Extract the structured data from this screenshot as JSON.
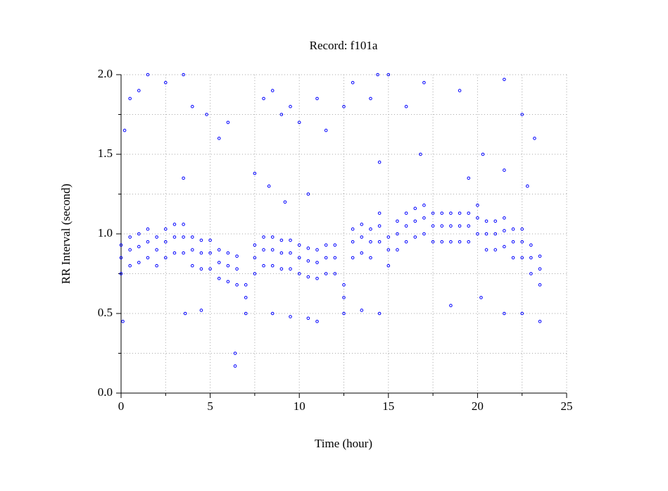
{
  "chart_data": {
    "type": "scatter",
    "title": "Record:  f101a",
    "x_label": "Time (hour)",
    "y_label": "RR Interval (second)",
    "xlim": [
      0,
      25
    ],
    "ylim": [
      0,
      2
    ],
    "xticks": [
      0,
      5,
      10,
      15,
      20,
      25
    ],
    "xminor": [
      2.5,
      7.5,
      12.5,
      17.5,
      22.5
    ],
    "yticks": [
      {
        "value": 0,
        "label": "0.0"
      },
      {
        "value": 0.5,
        "label": "0.5"
      },
      {
        "value": 1,
        "label": "1.0"
      },
      {
        "value": 1.5,
        "label": "1.5"
      },
      {
        "value": 2,
        "label": "2.0"
      }
    ],
    "yminor": [
      0.25,
      0.75,
      1.25,
      1.75
    ],
    "grid": true,
    "series": [
      {
        "color": "#0000ff",
        "x": [
          0,
          0,
          0,
          0.5,
          0.5,
          0.5,
          1,
          1,
          1,
          1.5,
          1.5,
          1.5,
          2,
          2,
          2,
          2.5,
          2.5,
          2.5,
          3,
          3,
          3,
          3.5,
          3.5,
          3.5,
          4,
          4,
          4,
          4.5,
          4.5,
          4.5,
          5,
          5,
          5,
          5.5,
          5.5,
          5.5,
          6,
          6,
          6,
          6.5,
          6.5,
          6.5,
          7,
          7,
          7,
          7.5,
          7.5,
          7.5,
          8,
          8,
          8,
          8.5,
          8.5,
          8.5,
          9,
          9,
          9,
          9.5,
          9.5,
          9.5,
          10,
          10,
          10,
          10.5,
          10.5,
          10.5,
          11,
          11,
          11,
          11.5,
          11.5,
          11.5,
          12,
          12,
          12,
          12.5,
          12.5,
          12.5,
          13,
          13,
          13,
          13.5,
          13.5,
          13.5,
          14,
          14,
          14,
          14.5,
          14.5,
          14.5,
          15,
          15,
          15,
          15.5,
          15.5,
          15.5,
          16,
          16,
          16,
          16.5,
          16.5,
          16.5,
          17,
          17,
          17,
          17.5,
          17.5,
          17.5,
          18,
          18,
          18,
          18.5,
          18.5,
          18.5,
          19,
          19,
          19,
          19.5,
          19.5,
          19.5,
          20,
          20,
          20,
          20.5,
          20.5,
          20.5,
          21,
          21,
          21,
          21.5,
          21.5,
          21.5,
          22,
          22,
          22,
          22.5,
          22.5,
          22.5,
          23,
          23,
          23,
          23.5,
          23.5,
          23.5,
          0.2,
          0.5,
          1,
          1.5,
          2.5,
          3.5,
          4,
          4.8,
          5.5,
          6,
          6.4,
          6.4,
          8,
          8.5,
          9,
          9.5,
          10,
          11,
          11.5,
          12.5,
          13,
          14,
          14.4,
          15,
          16,
          17,
          19,
          20.3,
          21.5,
          22.5,
          23.2,
          3.6,
          4.5,
          8.5,
          9.5,
          10.5,
          11,
          13.5,
          14.5,
          18.5,
          20.2,
          21.5,
          22.5,
          23.5,
          0.1,
          8.3,
          9.2,
          10.5,
          14.5,
          16.8,
          19.5,
          21.5,
          22.8,
          7.5,
          3.5
        ],
        "values": [
          0.75,
          0.85,
          0.93,
          0.8,
          0.9,
          0.98,
          0.82,
          0.92,
          1.0,
          0.85,
          0.95,
          1.03,
          0.8,
          0.9,
          0.98,
          0.85,
          0.95,
          1.03,
          0.88,
          0.98,
          1.06,
          0.88,
          0.98,
          1.06,
          0.8,
          0.9,
          0.98,
          0.78,
          0.88,
          0.96,
          0.78,
          0.88,
          0.96,
          0.72,
          0.82,
          0.9,
          0.7,
          0.8,
          0.88,
          0.68,
          0.78,
          0.86,
          0.5,
          0.6,
          0.68,
          0.75,
          0.85,
          0.93,
          0.8,
          0.9,
          0.98,
          0.8,
          0.9,
          0.98,
          0.78,
          0.88,
          0.96,
          0.78,
          0.88,
          0.96,
          0.75,
          0.85,
          0.93,
          0.73,
          0.83,
          0.91,
          0.72,
          0.82,
          0.9,
          0.75,
          0.85,
          0.93,
          0.75,
          0.85,
          0.93,
          0.5,
          0.6,
          0.68,
          0.85,
          0.95,
          1.03,
          0.88,
          0.98,
          1.06,
          0.85,
          0.95,
          1.03,
          0.95,
          1.05,
          1.13,
          0.8,
          0.9,
          0.98,
          0.9,
          1.0,
          1.08,
          0.95,
          1.05,
          1.13,
          0.98,
          1.08,
          1.16,
          1.0,
          1.1,
          1.18,
          0.95,
          1.05,
          1.13,
          0.95,
          1.05,
          1.13,
          0.95,
          1.05,
          1.13,
          0.95,
          1.05,
          1.13,
          0.95,
          1.05,
          1.13,
          1.0,
          1.1,
          1.18,
          0.9,
          1.0,
          1.08,
          0.9,
          1.0,
          1.08,
          0.92,
          1.02,
          1.1,
          0.85,
          0.95,
          1.03,
          0.85,
          0.95,
          1.03,
          0.75,
          0.85,
          0.93,
          0.68,
          0.78,
          0.86,
          1.65,
          1.85,
          1.9,
          2.0,
          1.95,
          2.0,
          1.8,
          1.75,
          1.6,
          1.7,
          0.25,
          0.17,
          1.85,
          1.9,
          1.75,
          1.8,
          1.7,
          1.85,
          1.65,
          1.8,
          1.95,
          1.85,
          2.0,
          2.0,
          1.8,
          1.95,
          1.9,
          1.5,
          1.97,
          1.75,
          1.6,
          0.5,
          0.52,
          0.5,
          0.48,
          0.47,
          0.45,
          0.52,
          0.5,
          0.55,
          0.6,
          0.5,
          0.5,
          0.45,
          0.45,
          1.3,
          1.2,
          1.25,
          1.45,
          1.5,
          1.35,
          1.4,
          1.3,
          1.38,
          1.35
        ]
      }
    ]
  }
}
